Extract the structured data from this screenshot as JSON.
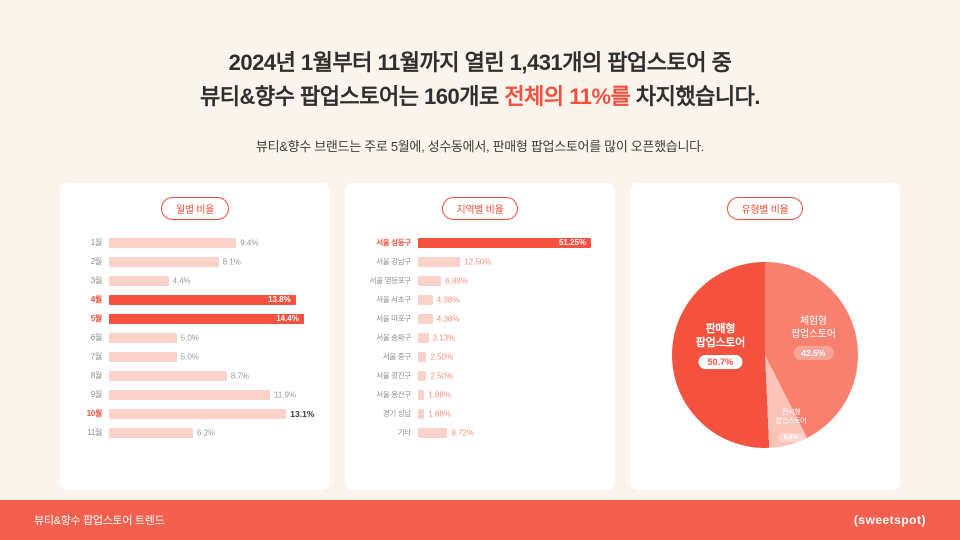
{
  "colors": {
    "page_bg": "#fbf4ec",
    "card_bg": "#ffffff",
    "accent": "#f2513f",
    "bar_light": "#fad2ca",
    "bar_solid": "#f4513e",
    "footer_bg": "#f4604e",
    "title_text": "#2f2f2f",
    "muted_text": "#8c8c8c"
  },
  "header": {
    "title_line1": "2024년 1월부터 11월까지 열린 1,431개의 팝업스토어 중",
    "title_line2_pre": "뷰티&향수 팝업스토어는 160개로 ",
    "title_line2_highlight": "전체의 11%를",
    "title_line2_post": " 차지했습니다.",
    "subtitle": "뷰티&향수 브랜드는 주로 5월에, 성수동에서, 판매형 팝업스토어를 많이 오픈했습니다."
  },
  "chart_data": [
    {
      "id": "monthly",
      "type": "bar",
      "title": "월별 비율",
      "orientation": "horizontal",
      "unit": "%",
      "axis_max": 15,
      "value_color": "#9a9a9a",
      "items": [
        {
          "label": "1월",
          "value": 9.4,
          "display": "9.4%",
          "emph": "none"
        },
        {
          "label": "2월",
          "value": 8.1,
          "display": "8.1%",
          "emph": "none"
        },
        {
          "label": "3월",
          "value": 4.4,
          "display": "4.4%",
          "emph": "none"
        },
        {
          "label": "4월",
          "value": 13.8,
          "display": "13.8%",
          "emph": "bar"
        },
        {
          "label": "5월",
          "value": 14.4,
          "display": "14.4%",
          "emph": "bar"
        },
        {
          "label": "6월",
          "value": 5.0,
          "display": "5.0%",
          "emph": "none"
        },
        {
          "label": "7월",
          "value": 5.0,
          "display": "5.0%",
          "emph": "none"
        },
        {
          "label": "8월",
          "value": 8.7,
          "display": "8.7%",
          "emph": "none"
        },
        {
          "label": "9월",
          "value": 11.9,
          "display": "11.9%",
          "emph": "none"
        },
        {
          "label": "10월",
          "value": 13.1,
          "display": "13.1%",
          "emph": "label"
        },
        {
          "label": "11월",
          "value": 6.2,
          "display": "6.2%",
          "emph": "none"
        }
      ]
    },
    {
      "id": "regional",
      "type": "bar",
      "title": "지역별 비율",
      "orientation": "horizontal",
      "unit": "%",
      "axis_max": 53,
      "value_color": "#ef937f",
      "items": [
        {
          "label": "서울 성동구",
          "value": 51.25,
          "display": "51.25%",
          "emph": "bar"
        },
        {
          "label": "서울 강남구",
          "value": 12.5,
          "display": "12.50%",
          "emph": "none"
        },
        {
          "label": "서울 영등포구",
          "value": 6.88,
          "display": "6.88%",
          "emph": "none"
        },
        {
          "label": "서울 서초구",
          "value": 4.38,
          "display": "4.38%",
          "emph": "none"
        },
        {
          "label": "서울 마포구",
          "value": 4.38,
          "display": "4.38%",
          "emph": "none"
        },
        {
          "label": "서울 송파구",
          "value": 3.13,
          "display": "3.13%",
          "emph": "none"
        },
        {
          "label": "서울 중구",
          "value": 2.5,
          "display": "2.50%",
          "emph": "none"
        },
        {
          "label": "서울 광진구",
          "value": 2.5,
          "display": "2.50%",
          "emph": "none"
        },
        {
          "label": "서울 용산구",
          "value": 1.88,
          "display": "1.88%",
          "emph": "none"
        },
        {
          "label": "경기 성남",
          "value": 1.88,
          "display": "1.88%",
          "emph": "none"
        },
        {
          "label": "기타",
          "value": 8.72,
          "display": "8.72%",
          "emph": "none"
        }
      ]
    },
    {
      "id": "type",
      "type": "pie",
      "title": "유형별 비율",
      "slices": [
        {
          "label": "판매형 팝업스토어",
          "value": 50.7,
          "display": "50.7%",
          "color": "#f4513e"
        },
        {
          "label": "체험형 팝업스토어",
          "value": 42.5,
          "display": "42.5%",
          "color": "#f8806f"
        },
        {
          "label": "전시형 팝업스토어",
          "value": 6.8,
          "display": "6.8%",
          "color": "#fbc2b7"
        }
      ]
    }
  ],
  "footer": {
    "label": "뷰티&향수 팝업스토어 트렌드",
    "logo": "(sweetspot)"
  }
}
